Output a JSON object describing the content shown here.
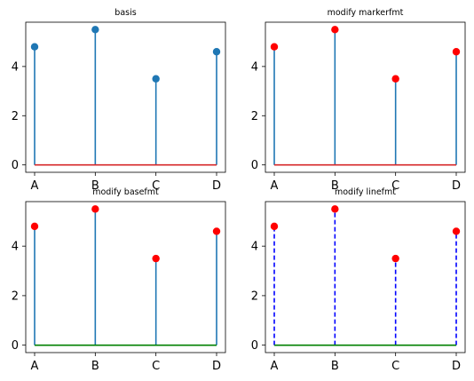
{
  "chart_data": [
    {
      "type": "stem",
      "title": "basis",
      "categories": [
        "A",
        "B",
        "C",
        "D"
      ],
      "values": [
        4.8,
        5.5,
        3.5,
        4.6
      ],
      "yticks": [
        0,
        2,
        4
      ],
      "ylim": [
        -0.3,
        5.8
      ],
      "style": {
        "stem": "#1f77b4",
        "stem_dash": false,
        "marker": "#1f77b4",
        "baseline": "#d62728"
      }
    },
    {
      "type": "stem",
      "title": "modify markerfmt",
      "categories": [
        "A",
        "B",
        "C",
        "D"
      ],
      "values": [
        4.8,
        5.5,
        3.5,
        4.6
      ],
      "yticks": [
        0,
        2,
        4
      ],
      "ylim": [
        -0.3,
        5.8
      ],
      "style": {
        "stem": "#1f77b4",
        "stem_dash": false,
        "marker": "#ff0000",
        "baseline": "#d62728"
      }
    },
    {
      "type": "stem",
      "title": "modify basefmt",
      "categories": [
        "A",
        "B",
        "C",
        "D"
      ],
      "values": [
        4.8,
        5.5,
        3.5,
        4.6
      ],
      "yticks": [
        0,
        2,
        4
      ],
      "ylim": [
        -0.3,
        5.8
      ],
      "style": {
        "stem": "#1f77b4",
        "stem_dash": false,
        "marker": "#ff0000",
        "baseline": "#008000"
      }
    },
    {
      "type": "stem",
      "title": "modify linefmt",
      "categories": [
        "A",
        "B",
        "C",
        "D"
      ],
      "values": [
        4.8,
        5.5,
        3.5,
        4.6
      ],
      "yticks": [
        0,
        2,
        4
      ],
      "ylim": [
        -0.3,
        5.8
      ],
      "style": {
        "stem": "#0000ff",
        "stem_dash": true,
        "marker": "#ff0000",
        "baseline": "#008000"
      }
    }
  ]
}
